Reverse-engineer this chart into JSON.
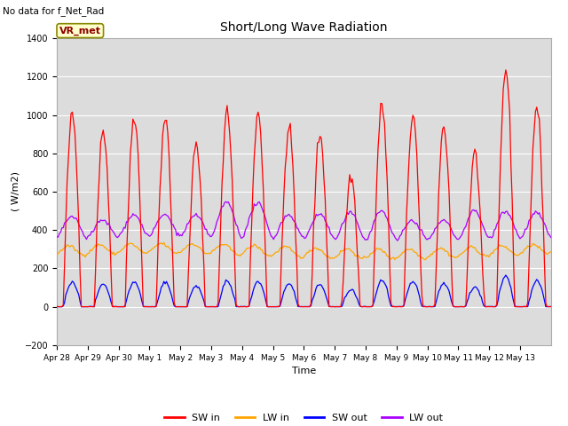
{
  "title": "Short/Long Wave Radiation",
  "xlabel": "Time",
  "ylabel": "( W/m2)",
  "top_left_text": "No data for f_Net_Rad",
  "label_box_text": "VR_met",
  "ylim": [
    -200,
    1400
  ],
  "yticks": [
    -200,
    0,
    200,
    400,
    600,
    800,
    1000,
    1200,
    1400
  ],
  "xtick_labels": [
    "Apr 28",
    "Apr 29",
    "Apr 30",
    "May 1",
    "May 2",
    "May 3",
    "May 4",
    "May 5",
    "May 6",
    "May 7",
    "May 8",
    "May 9",
    "May 10",
    "May 11",
    "May 12",
    "May 13"
  ],
  "background_color": "#dcdcdc",
  "sw_in_peaks": [
    1000,
    920,
    1000,
    985,
    840,
    1020,
    1010,
    930,
    900,
    680,
    1050,
    1000,
    940,
    800,
    1240,
    1040
  ],
  "lw_out_peaks": [
    470,
    450,
    480,
    480,
    475,
    545,
    540,
    480,
    485,
    490,
    500,
    450,
    450,
    500,
    500,
    490
  ],
  "num_days": 16,
  "hours_per_day": 24,
  "sw_in_color": "#ff0000",
  "lw_in_color": "#ffa500",
  "sw_out_color": "#0000ff",
  "lw_out_color": "#aa00ff"
}
